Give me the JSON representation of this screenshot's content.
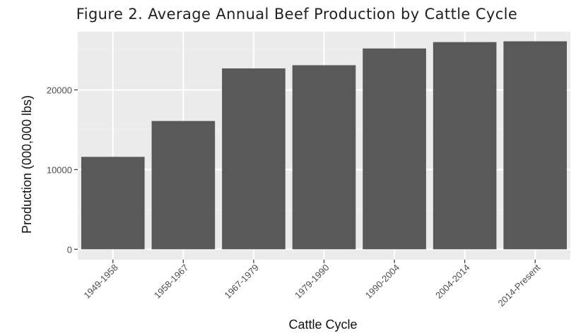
{
  "chart_data": {
    "type": "bar",
    "title": "Figure 2. Average Annual Beef Production by Cattle Cycle",
    "xlabel": "Cattle Cycle",
    "ylabel": "Production (000,000 lbs)",
    "categories": [
      "1949-1958",
      "1958-1967",
      "1967-1979",
      "1979-1990",
      "1990-2004",
      "2004-2014",
      "2014-Present"
    ],
    "values": [
      11600,
      16100,
      22700,
      23100,
      25200,
      26000,
      26100
    ],
    "yticks": [
      0,
      10000,
      20000
    ],
    "ylim": [
      -1300,
      27300
    ],
    "grid": true,
    "legend": "none",
    "colors": {
      "bar": "#595959",
      "panel": "#ebebeb",
      "grid_major": "#ffffff",
      "grid_minor": "#f2f2f2"
    }
  }
}
